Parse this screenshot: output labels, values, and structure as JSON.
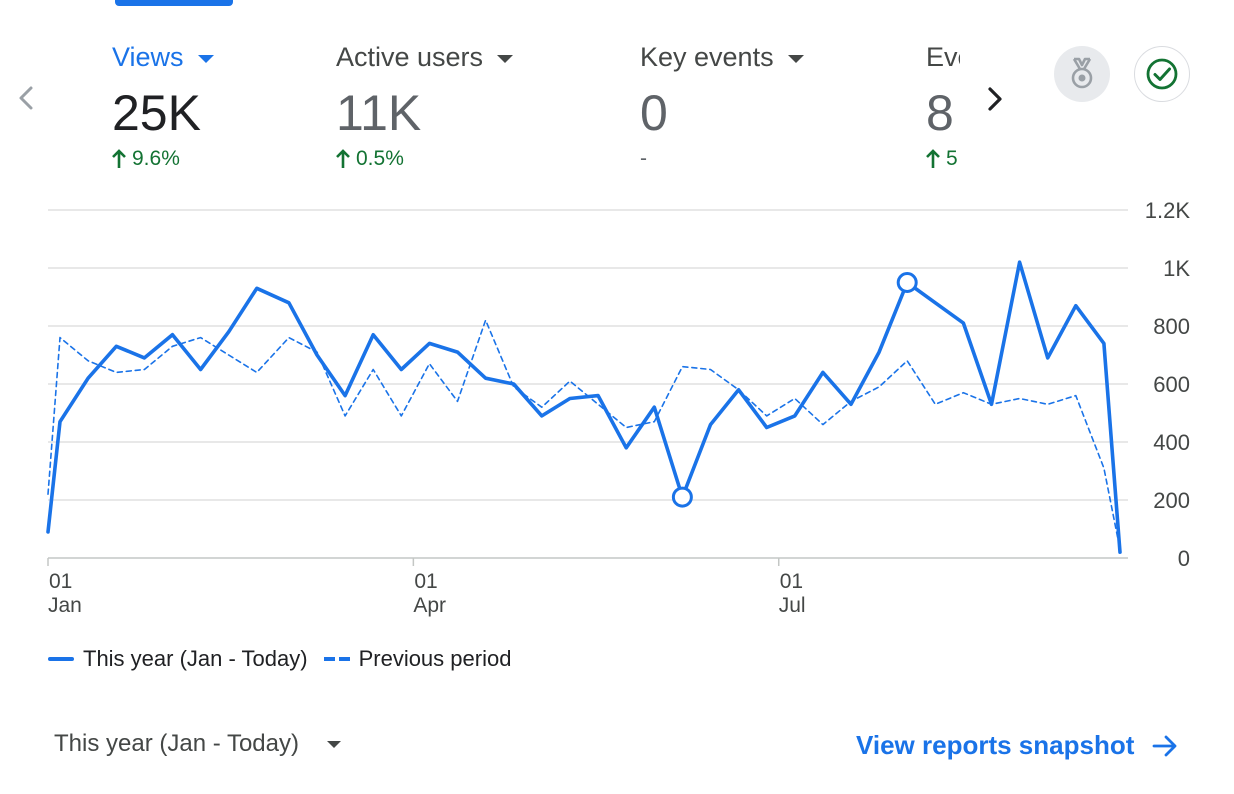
{
  "metrics": [
    {
      "label": "Views",
      "value": "25K",
      "change": "9.6%",
      "trend": "up",
      "active": true
    },
    {
      "label": "Active users",
      "value": "11K",
      "change": "0.5%",
      "trend": "up",
      "active": false
    },
    {
      "label": "Key events",
      "value": "0",
      "change": "-",
      "trend": "none",
      "active": false
    },
    {
      "label": "Eve",
      "value": "8",
      "change": "5",
      "trend": "up",
      "active": false
    }
  ],
  "colors": {
    "accent": "#1a73e8",
    "positive": "#137333",
    "grid": "#e0e0e0"
  },
  "icons": {
    "prev": "chevron-left-icon",
    "next": "chevron-right-icon",
    "medal": "medal-icon",
    "check": "check-circle-icon"
  },
  "chart_data": {
    "type": "line",
    "x_domain": [
      "Jan 01",
      "Sep 24"
    ],
    "x_ticks": [
      {
        "label_day": "01",
        "label_month": "Jan",
        "date": "Jan 01"
      },
      {
        "label_day": "01",
        "label_month": "Apr",
        "date": "Apr 01"
      },
      {
        "label_day": "01",
        "label_month": "Jul",
        "date": "Jul 01"
      }
    ],
    "y_ticks": [
      "0",
      "200",
      "400",
      "600",
      "800",
      "1K",
      "1.2K"
    ],
    "y_tick_values": [
      0,
      200,
      400,
      600,
      800,
      1000,
      1200
    ],
    "ylim": [
      0,
      1200
    ],
    "grid": true,
    "legend_position": "bottom-left",
    "series": [
      {
        "name": "This year (Jan - Today)",
        "style": "solid",
        "points": [
          [
            "Jan 01",
            90
          ],
          [
            "Jan 04",
            470
          ],
          [
            "Jan 11",
            620
          ],
          [
            "Jan 18",
            730
          ],
          [
            "Jan 25",
            690
          ],
          [
            "Feb 01",
            770
          ],
          [
            "Feb 08",
            650
          ],
          [
            "Feb 15",
            780
          ],
          [
            "Feb 22",
            930
          ],
          [
            "Mar 01",
            880
          ],
          [
            "Mar 08",
            700
          ],
          [
            "Mar 15",
            560
          ],
          [
            "Mar 22",
            770
          ],
          [
            "Mar 29",
            650
          ],
          [
            "Apr 05",
            740
          ],
          [
            "Apr 12",
            710
          ],
          [
            "Apr 19",
            620
          ],
          [
            "Apr 26",
            600
          ],
          [
            "May 03",
            490
          ],
          [
            "May 10",
            550
          ],
          [
            "May 17",
            560
          ],
          [
            "May 24",
            380
          ],
          [
            "May 31",
            520
          ],
          [
            "Jun 07",
            210
          ],
          [
            "Jun 14",
            460
          ],
          [
            "Jun 21",
            580
          ],
          [
            "Jun 28",
            450
          ],
          [
            "Jul 05",
            490
          ],
          [
            "Jul 12",
            640
          ],
          [
            "Jul 19",
            530
          ],
          [
            "Jul 26",
            710
          ],
          [
            "Aug 02",
            950
          ],
          [
            "Aug 09",
            880
          ],
          [
            "Aug 16",
            810
          ],
          [
            "Aug 23",
            530
          ],
          [
            "Aug 30",
            1020
          ],
          [
            "Sep 06",
            690
          ],
          [
            "Sep 13",
            870
          ],
          [
            "Sep 20",
            740
          ],
          [
            "Sep 24",
            20
          ]
        ],
        "highlighted": [
          [
            "Jun 07",
            210
          ],
          [
            "Aug 02",
            950
          ]
        ]
      },
      {
        "name": "Previous period",
        "style": "dashed",
        "points": [
          [
            "Jan 01",
            220
          ],
          [
            "Jan 04",
            760
          ],
          [
            "Jan 11",
            680
          ],
          [
            "Jan 18",
            640
          ],
          [
            "Jan 25",
            650
          ],
          [
            "Feb 01",
            730
          ],
          [
            "Feb 08",
            760
          ],
          [
            "Feb 15",
            700
          ],
          [
            "Feb 22",
            640
          ],
          [
            "Mar 01",
            760
          ],
          [
            "Mar 08",
            710
          ],
          [
            "Mar 15",
            490
          ],
          [
            "Mar 22",
            650
          ],
          [
            "Mar 29",
            490
          ],
          [
            "Apr 05",
            670
          ],
          [
            "Apr 12",
            540
          ],
          [
            "Apr 19",
            820
          ],
          [
            "Apr 26",
            590
          ],
          [
            "May 03",
            520
          ],
          [
            "May 10",
            610
          ],
          [
            "May 17",
            530
          ],
          [
            "May 24",
            450
          ],
          [
            "May 31",
            470
          ],
          [
            "Jun 07",
            660
          ],
          [
            "Jun 14",
            650
          ],
          [
            "Jun 21",
            580
          ],
          [
            "Jun 28",
            490
          ],
          [
            "Jul 05",
            550
          ],
          [
            "Jul 12",
            460
          ],
          [
            "Jul 19",
            540
          ],
          [
            "Jul 26",
            590
          ],
          [
            "Aug 02",
            680
          ],
          [
            "Aug 09",
            530
          ],
          [
            "Aug 16",
            570
          ],
          [
            "Aug 23",
            530
          ],
          [
            "Aug 30",
            550
          ],
          [
            "Sep 06",
            530
          ],
          [
            "Sep 13",
            560
          ],
          [
            "Sep 20",
            310
          ],
          [
            "Sep 24",
            30
          ]
        ]
      }
    ]
  },
  "legend": {
    "this_year": "This year (Jan - Today)",
    "previous": "Previous period"
  },
  "footer": {
    "range_label": "This year (Jan - Today)",
    "snapshot_link": "View reports snapshot"
  }
}
